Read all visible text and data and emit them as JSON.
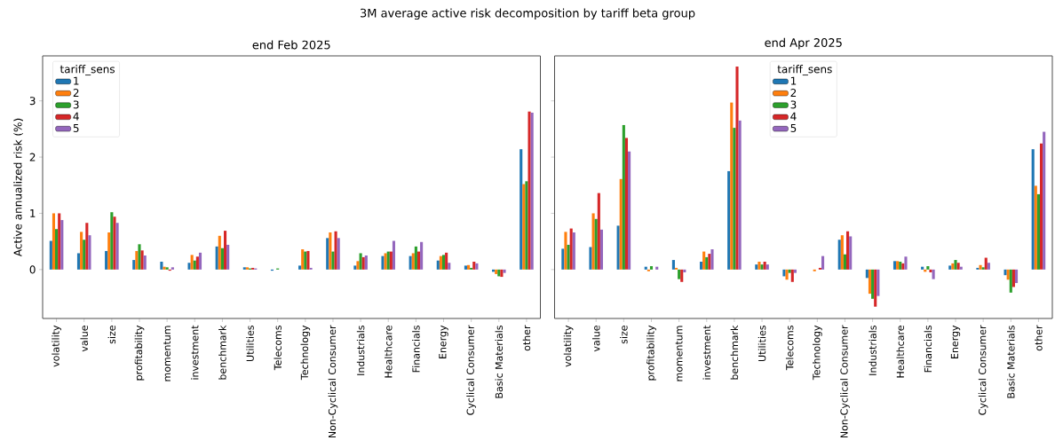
{
  "chart_data": [
    {
      "type": "bar",
      "title": "end Feb 2025",
      "annotations": [
        "3M average active risk decomposition by tariff beta group"
      ],
      "ylabel": "Active annualized risk (%)",
      "categories": [
        "volatility",
        "value",
        "size",
        "profitability",
        "momentum",
        "investment",
        "benchmark",
        "Utilities",
        "Telecoms",
        "Technology",
        "Non-Cyclical Consumer",
        "Industrials",
        "Healthcare",
        "Financials",
        "Energy",
        "Cyclical Consumer",
        "Basic Materials",
        "other"
      ],
      "series": [
        {
          "name": "1",
          "color": "#1f77b4",
          "values": [
            0.51,
            0.29,
            0.33,
            0.17,
            0.14,
            0.12,
            0.41,
            0.04,
            -0.02,
            0.07,
            0.56,
            0.07,
            0.24,
            0.24,
            0.16,
            0.07,
            -0.04,
            2.14
          ]
        },
        {
          "name": "2",
          "color": "#ff7f0e",
          "values": [
            1.0,
            0.67,
            0.66,
            0.33,
            0.05,
            0.26,
            0.6,
            0.04,
            0.0,
            0.36,
            0.66,
            0.15,
            0.29,
            0.29,
            0.24,
            0.08,
            -0.08,
            1.52
          ]
        },
        {
          "name": "3",
          "color": "#2ca02c",
          "values": [
            0.72,
            0.53,
            1.02,
            0.45,
            0.04,
            0.16,
            0.38,
            0.02,
            0.02,
            0.32,
            0.32,
            0.29,
            0.32,
            0.41,
            0.26,
            0.03,
            -0.12,
            1.57
          ]
        },
        {
          "name": "4",
          "color": "#d62728",
          "values": [
            1.0,
            0.83,
            0.94,
            0.34,
            -0.02,
            0.23,
            0.69,
            0.03,
            0.0,
            0.33,
            0.68,
            0.22,
            0.32,
            0.32,
            0.3,
            0.14,
            -0.13,
            2.81
          ]
        },
        {
          "name": "5",
          "color": "#9467bd",
          "values": [
            0.88,
            0.61,
            0.83,
            0.25,
            0.04,
            0.3,
            0.44,
            0.02,
            0.0,
            0.03,
            0.56,
            0.25,
            0.51,
            0.49,
            0.12,
            0.11,
            -0.06,
            2.79
          ]
        }
      ],
      "ylim": [
        -0.87,
        3.8
      ],
      "yticks": [
        0,
        1,
        2,
        3
      ],
      "legend": "top left",
      "legend_title": "tariff_sens"
    },
    {
      "type": "bar",
      "title": "end Apr 2025",
      "categories": [
        "volatility",
        "value",
        "size",
        "profitability",
        "momentum",
        "investment",
        "benchmark",
        "Utilities",
        "Telecoms",
        "Technology",
        "Non-Cyclical Consumer",
        "Industrials",
        "Healthcare",
        "Financials",
        "Energy",
        "Cyclical Consumer",
        "Basic Materials",
        "other"
      ],
      "series": [
        {
          "name": "1",
          "color": "#1f77b4",
          "values": [
            0.37,
            0.4,
            0.78,
            0.05,
            0.17,
            0.14,
            1.75,
            0.09,
            -0.12,
            0.0,
            0.53,
            -0.15,
            0.15,
            0.05,
            0.07,
            0.03,
            -0.1,
            2.14
          ]
        },
        {
          "name": "2",
          "color": "#ff7f0e",
          "values": [
            0.67,
            1.0,
            1.61,
            -0.03,
            0.03,
            0.32,
            2.97,
            0.14,
            -0.18,
            -0.03,
            0.61,
            -0.43,
            0.15,
            -0.04,
            0.11,
            0.08,
            -0.18,
            1.49
          ]
        },
        {
          "name": "3",
          "color": "#2ca02c",
          "values": [
            0.44,
            0.9,
            2.57,
            0.06,
            -0.17,
            0.22,
            2.52,
            0.09,
            -0.06,
            0.0,
            0.27,
            -0.52,
            0.14,
            0.06,
            0.17,
            0.04,
            -0.41,
            1.34
          ]
        },
        {
          "name": "4",
          "color": "#d62728",
          "values": [
            0.73,
            1.36,
            2.34,
            0.0,
            -0.22,
            0.28,
            3.61,
            0.14,
            -0.22,
            0.03,
            0.68,
            -0.66,
            0.11,
            -0.05,
            0.12,
            0.21,
            -0.31,
            2.24
          ]
        },
        {
          "name": "5",
          "color": "#9467bd",
          "values": [
            0.66,
            0.71,
            2.1,
            0.05,
            -0.05,
            0.36,
            2.65,
            0.09,
            -0.06,
            0.24,
            0.59,
            -0.47,
            0.23,
            -0.17,
            0.05,
            0.12,
            -0.24,
            2.45
          ]
        }
      ],
      "ylim": [
        -0.87,
        3.8
      ],
      "yticks": [
        0,
        1,
        2,
        3
      ],
      "tick_labels": "x",
      "legend": "top",
      "legend_title": "tariff_sens"
    }
  ]
}
